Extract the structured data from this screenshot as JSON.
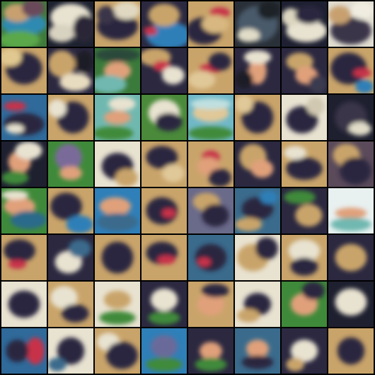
{
  "grid": {
    "rows": 8,
    "columns": 8,
    "background_color": "#000000"
  },
  "palette": {
    "dark_navy": "#2b2840",
    "sand": "#c9a46a",
    "cream": "#e8e2d0",
    "sky_blue": "#2f7fb8",
    "ocean": "#3a6b8c",
    "grass_green": "#3f8a3a",
    "red": "#c8324a",
    "peach": "#e0a07a",
    "teal": "#6fb8b0"
  },
  "tiles": [
    {
      "base": "#3f7a3a",
      "blobs": [
        [
          "#2f8ab0",
          0.5,
          0.5,
          0.5,
          0.25
        ],
        [
          "#c8a070",
          0.35,
          0.25,
          0.3,
          0.2
        ],
        [
          "#6a4a5a",
          0.7,
          0.15,
          0.25,
          0.2
        ],
        [
          "#5aa84a",
          0.4,
          0.85,
          0.45,
          0.2
        ]
      ]
    },
    {
      "base": "#1e2230",
      "blobs": [
        [
          "#e8e2d0",
          0.5,
          0.35,
          0.45,
          0.3
        ],
        [
          "#d8d2c0",
          0.3,
          0.7,
          0.3,
          0.2
        ],
        [
          "#2a2838",
          0.8,
          0.6,
          0.25,
          0.3
        ]
      ]
    },
    {
      "base": "#c8a46a",
      "blobs": [
        [
          "#2b2840",
          0.5,
          0.55,
          0.45,
          0.3
        ],
        [
          "#e0d8c0",
          0.7,
          0.2,
          0.3,
          0.2
        ],
        [
          "#3a3448",
          0.25,
          0.3,
          0.2,
          0.2
        ]
      ]
    },
    {
      "base": "#2b2840",
      "blobs": [
        [
          "#2f7fb8",
          0.6,
          0.75,
          0.5,
          0.3
        ],
        [
          "#c8a46a",
          0.5,
          0.3,
          0.35,
          0.25
        ],
        [
          "#c8324a",
          0.2,
          0.65,
          0.15,
          0.1
        ]
      ]
    },
    {
      "base": "#c9a46a",
      "blobs": [
        [
          "#2b2840",
          0.35,
          0.65,
          0.4,
          0.3
        ],
        [
          "#c8324a",
          0.7,
          0.25,
          0.22,
          0.12
        ],
        [
          "#d8b880",
          0.6,
          0.5,
          0.3,
          0.2
        ]
      ]
    },
    {
      "base": "#2a3038",
      "blobs": [
        [
          "#4a5a6a",
          0.5,
          0.5,
          0.45,
          0.4
        ],
        [
          "#e0dcc8",
          0.3,
          0.75,
          0.25,
          0.15
        ],
        [
          "#1a2028",
          0.75,
          0.2,
          0.25,
          0.2
        ]
      ]
    },
    {
      "base": "#1e2032",
      "blobs": [
        [
          "#e8e2d0",
          0.55,
          0.65,
          0.45,
          0.25
        ],
        [
          "#dcd6c0",
          0.2,
          0.35,
          0.2,
          0.2
        ],
        [
          "#2b2840",
          0.6,
          0.3,
          0.3,
          0.2
        ]
      ]
    },
    {
      "base": "#e0dcd0",
      "blobs": [
        [
          "#3a3448",
          0.5,
          0.65,
          0.45,
          0.3
        ],
        [
          "#c8a070",
          0.25,
          0.3,
          0.25,
          0.2
        ],
        [
          "#f0ece0",
          0.75,
          0.2,
          0.25,
          0.2
        ]
      ]
    },
    {
      "base": "#c9a46a",
      "blobs": [
        [
          "#2b2840",
          0.5,
          0.45,
          0.4,
          0.35
        ],
        [
          "#e0c890",
          0.2,
          0.2,
          0.25,
          0.2
        ]
      ]
    },
    {
      "base": "#2b2840",
      "blobs": [
        [
          "#c9a46a",
          0.3,
          0.35,
          0.3,
          0.3
        ],
        [
          "#e8dcc0",
          0.6,
          0.75,
          0.35,
          0.2
        ],
        [
          "#1a1a28",
          0.8,
          0.3,
          0.2,
          0.25
        ]
      ]
    },
    {
      "base": "#3a7a3a",
      "blobs": [
        [
          "#e0a07a",
          0.5,
          0.5,
          0.3,
          0.2
        ],
        [
          "#2b4a3a",
          0.5,
          0.15,
          0.5,
          0.15
        ],
        [
          "#6fb8b0",
          0.3,
          0.8,
          0.4,
          0.2
        ]
      ]
    },
    {
      "base": "#2b2840",
      "blobs": [
        [
          "#c9a46a",
          0.3,
          0.2,
          0.35,
          0.2
        ],
        [
          "#c8324a",
          0.45,
          0.4,
          0.2,
          0.12
        ],
        [
          "#e8e2d0",
          0.7,
          0.6,
          0.25,
          0.2
        ]
      ]
    },
    {
      "base": "#c9a46a",
      "blobs": [
        [
          "#c8324a",
          0.5,
          0.45,
          0.25,
          0.1
        ],
        [
          "#2b2840",
          0.7,
          0.3,
          0.25,
          0.2
        ],
        [
          "#e0c898",
          0.3,
          0.7,
          0.3,
          0.2
        ]
      ]
    },
    {
      "base": "#2b2840",
      "blobs": [
        [
          "#e0a07a",
          0.5,
          0.5,
          0.2,
          0.3
        ],
        [
          "#e8e2d0",
          0.5,
          0.2,
          0.3,
          0.15
        ],
        [
          "#1a1a28",
          0.2,
          0.7,
          0.2,
          0.2
        ]
      ]
    },
    {
      "base": "#2b2840",
      "blobs": [
        [
          "#c8a46a",
          0.4,
          0.3,
          0.3,
          0.2
        ],
        [
          "#e0a07a",
          0.55,
          0.6,
          0.25,
          0.2
        ],
        [
          "#3a3a50",
          0.8,
          0.8,
          0.2,
          0.2
        ]
      ]
    },
    {
      "base": "#c9a46a",
      "blobs": [
        [
          "#2b2840",
          0.45,
          0.45,
          0.4,
          0.35
        ],
        [
          "#c8324a",
          0.75,
          0.55,
          0.2,
          0.1
        ],
        [
          "#2f7fb8",
          0.8,
          0.85,
          0.2,
          0.15
        ]
      ]
    },
    {
      "base": "#2f6a9a",
      "blobs": [
        [
          "#c8324a",
          0.3,
          0.25,
          0.25,
          0.1
        ],
        [
          "#2b2840",
          0.5,
          0.65,
          0.45,
          0.25
        ],
        [
          "#e8e2d0",
          0.3,
          0.75,
          0.2,
          0.1
        ]
      ]
    },
    {
      "base": "#c9a46a",
      "blobs": [
        [
          "#2b2840",
          0.55,
          0.5,
          0.35,
          0.35
        ],
        [
          "#e8e2d0",
          0.2,
          0.3,
          0.2,
          0.2
        ]
      ]
    },
    {
      "base": "#6fb8b0",
      "blobs": [
        [
          "#e0a07a",
          0.5,
          0.5,
          0.3,
          0.15
        ],
        [
          "#3f8a3a",
          0.4,
          0.85,
          0.45,
          0.15
        ],
        [
          "#e8e2d0",
          0.6,
          0.2,
          0.3,
          0.15
        ]
      ]
    },
    {
      "base": "#4a8a3a",
      "blobs": [
        [
          "#e8e2d0",
          0.5,
          0.4,
          0.35,
          0.3
        ],
        [
          "#2b2840",
          0.6,
          0.6,
          0.3,
          0.2
        ]
      ]
    },
    {
      "base": "#6fb8c8",
      "blobs": [
        [
          "#e0c898",
          0.5,
          0.4,
          0.4,
          0.2
        ],
        [
          "#3f8a3a",
          0.5,
          0.85,
          0.5,
          0.15
        ],
        [
          "#c0e0e0",
          0.5,
          0.2,
          0.45,
          0.12
        ]
      ]
    },
    {
      "base": "#c9a46a",
      "blobs": [
        [
          "#2b2840",
          0.5,
          0.5,
          0.35,
          0.35
        ],
        [
          "#e0c898",
          0.2,
          0.2,
          0.2,
          0.2
        ]
      ]
    },
    {
      "base": "#e8e2d0",
      "blobs": [
        [
          "#2b2840",
          0.45,
          0.55,
          0.35,
          0.3
        ],
        [
          "#d0c8b0",
          0.75,
          0.25,
          0.2,
          0.2
        ]
      ]
    },
    {
      "base": "#1e2030",
      "blobs": [
        [
          "#3a3448",
          0.5,
          0.5,
          0.35,
          0.35
        ],
        [
          "#e0dcc8",
          0.7,
          0.75,
          0.25,
          0.15
        ]
      ]
    },
    {
      "base": "#1e2030",
      "blobs": [
        [
          "#e0a07a",
          0.4,
          0.45,
          0.25,
          0.25
        ],
        [
          "#e8e2d0",
          0.6,
          0.2,
          0.3,
          0.2
        ],
        [
          "#3f8a3a",
          0.3,
          0.8,
          0.3,
          0.15
        ]
      ]
    },
    {
      "base": "#3f8a3a",
      "blobs": [
        [
          "#7a6a9a",
          0.45,
          0.35,
          0.3,
          0.3
        ],
        [
          "#e0a07a",
          0.5,
          0.7,
          0.25,
          0.15
        ]
      ]
    },
    {
      "base": "#e8e2d0",
      "blobs": [
        [
          "#2b2840",
          0.5,
          0.55,
          0.35,
          0.3
        ],
        [
          "#c9a46a",
          0.7,
          0.8,
          0.25,
          0.2
        ]
      ]
    },
    {
      "base": "#c9a46a",
      "blobs": [
        [
          "#2b2840",
          0.45,
          0.35,
          0.35,
          0.25
        ],
        [
          "#e0c898",
          0.7,
          0.7,
          0.25,
          0.2
        ]
      ]
    },
    {
      "base": "#c9a46a",
      "blobs": [
        [
          "#c8324a",
          0.5,
          0.35,
          0.2,
          0.15
        ],
        [
          "#e0a07a",
          0.45,
          0.55,
          0.25,
          0.2
        ],
        [
          "#2b2840",
          0.7,
          0.8,
          0.25,
          0.2
        ]
      ]
    },
    {
      "base": "#2b2840",
      "blobs": [
        [
          "#c9a46a",
          0.4,
          0.35,
          0.3,
          0.3
        ],
        [
          "#e0a07a",
          0.6,
          0.6,
          0.25,
          0.2
        ]
      ]
    },
    {
      "base": "#c9a46a",
      "blobs": [
        [
          "#2b2840",
          0.5,
          0.6,
          0.4,
          0.25
        ],
        [
          "#e8e2d0",
          0.3,
          0.25,
          0.25,
          0.15
        ]
      ]
    },
    {
      "base": "#5a4a5a",
      "blobs": [
        [
          "#c9a46a",
          0.4,
          0.3,
          0.3,
          0.25
        ],
        [
          "#2b2840",
          0.6,
          0.65,
          0.35,
          0.3
        ]
      ]
    },
    {
      "base": "#3f8a3a",
      "blobs": [
        [
          "#e0a07a",
          0.4,
          0.4,
          0.35,
          0.2
        ],
        [
          "#2b6a8a",
          0.6,
          0.7,
          0.4,
          0.2
        ],
        [
          "#e8e2d0",
          0.3,
          0.15,
          0.3,
          0.1
        ]
      ]
    },
    {
      "base": "#c9a46a",
      "blobs": [
        [
          "#2b2840",
          0.4,
          0.4,
          0.35,
          0.3
        ],
        [
          "#2f7fb8",
          0.7,
          0.8,
          0.3,
          0.2
        ]
      ]
    },
    {
      "base": "#2f7fb8",
      "blobs": [
        [
          "#e0a07a",
          0.45,
          0.4,
          0.35,
          0.2
        ],
        [
          "#3a6b8c",
          0.5,
          0.75,
          0.45,
          0.2
        ]
      ]
    },
    {
      "base": "#c9a46a",
      "blobs": [
        [
          "#2b2840",
          0.45,
          0.5,
          0.35,
          0.3
        ],
        [
          "#c8324a",
          0.6,
          0.55,
          0.15,
          0.1
        ]
      ]
    },
    {
      "base": "#6a6a8a",
      "blobs": [
        [
          "#c9a46a",
          0.4,
          0.3,
          0.3,
          0.2
        ],
        [
          "#2b2840",
          0.6,
          0.6,
          0.3,
          0.25
        ]
      ]
    },
    {
      "base": "#3a6b8c",
      "blobs": [
        [
          "#2b2840",
          0.5,
          0.45,
          0.35,
          0.25
        ],
        [
          "#c9a46a",
          0.3,
          0.8,
          0.3,
          0.15
        ],
        [
          "#2f7fb8",
          0.75,
          0.2,
          0.2,
          0.15
        ]
      ]
    },
    {
      "base": "#2b2840",
      "blobs": [
        [
          "#3f8a3a",
          0.4,
          0.2,
          0.35,
          0.15
        ],
        [
          "#c9a46a",
          0.6,
          0.6,
          0.3,
          0.25
        ]
      ]
    },
    {
      "base": "#e8f0f0",
      "blobs": [
        [
          "#e0a07a",
          0.5,
          0.55,
          0.35,
          0.12
        ],
        [
          "#6fb8b0",
          0.5,
          0.8,
          0.45,
          0.15
        ]
      ]
    },
    {
      "base": "#c9a46a",
      "blobs": [
        [
          "#2b2840",
          0.4,
          0.35,
          0.35,
          0.25
        ],
        [
          "#c8324a",
          0.35,
          0.65,
          0.2,
          0.1
        ]
      ]
    },
    {
      "base": "#2b2840",
      "blobs": [
        [
          "#e8e2d0",
          0.45,
          0.6,
          0.3,
          0.25
        ],
        [
          "#3a6b8c",
          0.7,
          0.3,
          0.25,
          0.2
        ]
      ]
    },
    {
      "base": "#c9a46a",
      "blobs": [
        [
          "#2b2840",
          0.5,
          0.5,
          0.35,
          0.35
        ]
      ]
    },
    {
      "base": "#c9a46a",
      "blobs": [
        [
          "#2b2840",
          0.45,
          0.4,
          0.35,
          0.25
        ],
        [
          "#c8324a",
          0.55,
          0.55,
          0.2,
          0.1
        ]
      ]
    },
    {
      "base": "#3a6b8c",
      "blobs": [
        [
          "#2b2840",
          0.5,
          0.5,
          0.35,
          0.3
        ],
        [
          "#c8324a",
          0.35,
          0.6,
          0.15,
          0.1
        ]
      ]
    },
    {
      "base": "#e8e2d0",
      "blobs": [
        [
          "#c9a46a",
          0.4,
          0.5,
          0.35,
          0.3
        ],
        [
          "#2b2840",
          0.7,
          0.3,
          0.25,
          0.25
        ]
      ]
    },
    {
      "base": "#c9a46a",
      "blobs": [
        [
          "#e8e2d0",
          0.5,
          0.35,
          0.35,
          0.25
        ],
        [
          "#2b2840",
          0.5,
          0.7,
          0.3,
          0.2
        ]
      ]
    },
    {
      "base": "#2b2840",
      "blobs": [
        [
          "#c9a46a",
          0.5,
          0.5,
          0.35,
          0.3
        ]
      ]
    },
    {
      "base": "#e8e2d0",
      "blobs": [
        [
          "#2b2840",
          0.5,
          0.5,
          0.35,
          0.3
        ]
      ]
    },
    {
      "base": "#c9a46a",
      "blobs": [
        [
          "#e8e2d0",
          0.35,
          0.35,
          0.3,
          0.25
        ],
        [
          "#2b2840",
          0.6,
          0.7,
          0.3,
          0.2
        ]
      ]
    },
    {
      "base": "#e8e2d0",
      "blobs": [
        [
          "#3f8a3a",
          0.5,
          0.8,
          0.4,
          0.15
        ],
        [
          "#c9a46a",
          0.5,
          0.4,
          0.3,
          0.2
        ]
      ]
    },
    {
      "base": "#2b2840",
      "blobs": [
        [
          "#e8e2d0",
          0.5,
          0.4,
          0.3,
          0.25
        ],
        [
          "#3f8a3a",
          0.5,
          0.8,
          0.35,
          0.15
        ]
      ]
    },
    {
      "base": "#c9a46a",
      "blobs": [
        [
          "#e0a07a",
          0.5,
          0.5,
          0.3,
          0.25
        ],
        [
          "#2b2840",
          0.6,
          0.2,
          0.3,
          0.15
        ]
      ]
    },
    {
      "base": "#e8e2d0",
      "blobs": [
        [
          "#2b2840",
          0.5,
          0.5,
          0.3,
          0.25
        ],
        [
          "#c9a46a",
          0.3,
          0.75,
          0.25,
          0.15
        ]
      ]
    },
    {
      "base": "#3f8a3a",
      "blobs": [
        [
          "#e0a07a",
          0.5,
          0.5,
          0.3,
          0.25
        ],
        [
          "#2b2840",
          0.7,
          0.2,
          0.25,
          0.2
        ]
      ]
    },
    {
      "base": "#1e2030",
      "blobs": [
        [
          "#e8e2d0",
          0.5,
          0.45,
          0.35,
          0.3
        ]
      ]
    },
    {
      "base": "#2f6a9a",
      "blobs": [
        [
          "#c8324a",
          0.75,
          0.5,
          0.2,
          0.3
        ],
        [
          "#2b2840",
          0.35,
          0.5,
          0.25,
          0.25
        ]
      ]
    },
    {
      "base": "#e8e2d0",
      "blobs": [
        [
          "#2b2840",
          0.5,
          0.5,
          0.3,
          0.3
        ],
        [
          "#3a6b8c",
          0.2,
          0.8,
          0.2,
          0.15
        ]
      ]
    },
    {
      "base": "#c9a46a",
      "blobs": [
        [
          "#e8e2d0",
          0.3,
          0.3,
          0.25,
          0.2
        ],
        [
          "#2b2840",
          0.6,
          0.6,
          0.35,
          0.3
        ]
      ]
    },
    {
      "base": "#2f7fb8",
      "blobs": [
        [
          "#6a6a9a",
          0.5,
          0.4,
          0.3,
          0.25
        ],
        [
          "#3f8a3a",
          0.5,
          0.8,
          0.4,
          0.15
        ]
      ]
    },
    {
      "base": "#2b2840",
      "blobs": [
        [
          "#e0a07a",
          0.5,
          0.5,
          0.25,
          0.2
        ],
        [
          "#3f8a3a",
          0.5,
          0.8,
          0.35,
          0.15
        ]
      ]
    },
    {
      "base": "#3a6b8c",
      "blobs": [
        [
          "#e0a07a",
          0.5,
          0.45,
          0.25,
          0.2
        ],
        [
          "#2b2840",
          0.5,
          0.75,
          0.35,
          0.15
        ]
      ]
    },
    {
      "base": "#2b2840",
      "blobs": [
        [
          "#e8e2d0",
          0.5,
          0.5,
          0.3,
          0.25
        ],
        [
          "#c9a46a",
          0.3,
          0.8,
          0.2,
          0.15
        ]
      ]
    },
    {
      "base": "#c9a46a",
      "blobs": [
        [
          "#2b2840",
          0.5,
          0.5,
          0.3,
          0.3
        ]
      ]
    }
  ]
}
